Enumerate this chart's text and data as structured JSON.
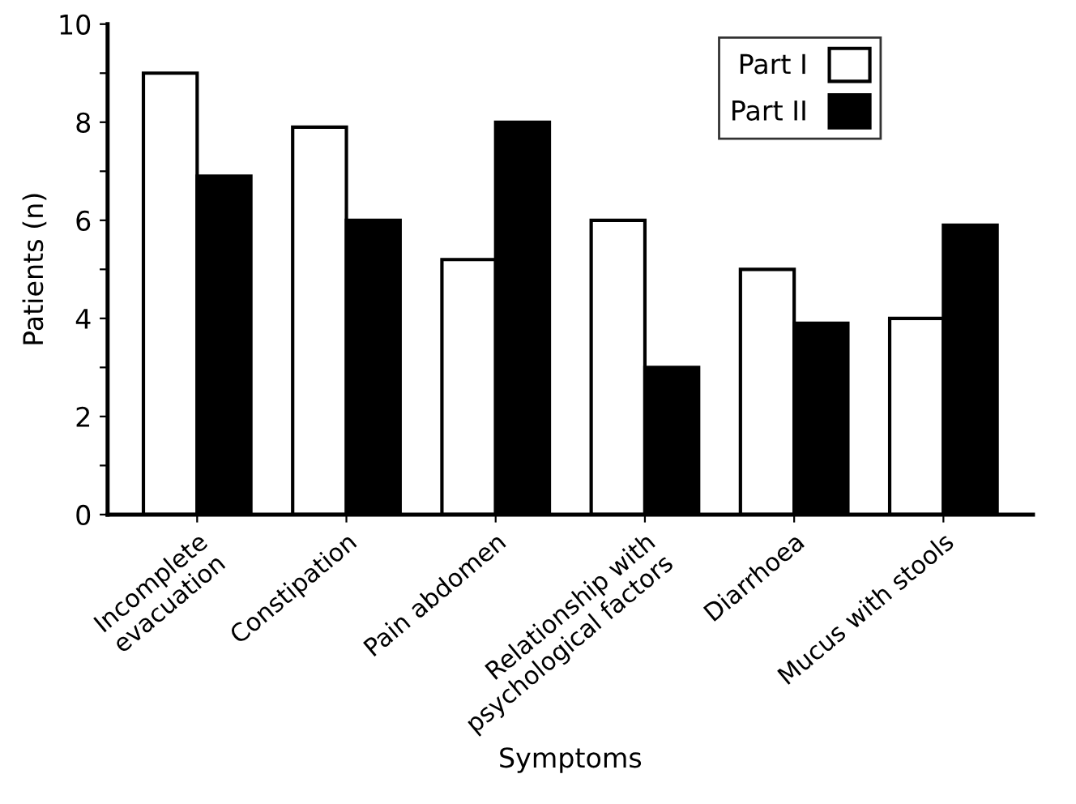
{
  "chart_data": {
    "type": "bar",
    "xlabel": "Symptoms",
    "ylabel": "Patients (n)",
    "categories": [
      "Incomplete\nevacuation",
      "Constipation",
      "Pain abdomen",
      "Relationship with\npsychological factors",
      "Diarrhoea",
      "Mucus with stools"
    ],
    "series": [
      {
        "name": "Part I",
        "color": "#ffffff",
        "values": [
          9,
          7.9,
          5.2,
          6,
          5,
          4
        ]
      },
      {
        "name": "Part II",
        "color": "#000000",
        "values": [
          6.9,
          6,
          8,
          3,
          3.9,
          5.9
        ]
      }
    ],
    "ylim": [
      0,
      10
    ],
    "yticks": [
      0,
      {
        "value": 1,
        "label": null
      },
      2,
      {
        "value": 3,
        "label": null
      },
      4,
      {
        "value": 5,
        "label": null
      },
      6,
      {
        "value": 7,
        "label": null
      },
      8,
      {
        "value": 9,
        "label": null
      },
      10
    ],
    "grid": false,
    "legend": "top right"
  }
}
